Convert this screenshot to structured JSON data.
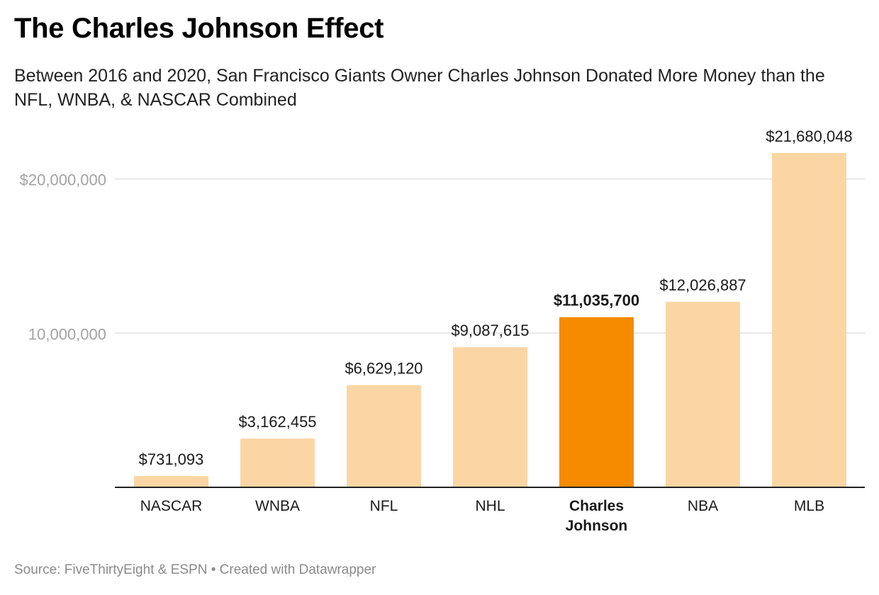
{
  "title": "The Charles Johnson Effect",
  "subtitle": "Between 2016 and 2020, San Francisco Giants Owner Charles Johnson Donated More Money than the NFL, WNBA, & NASCAR Combined",
  "footer": {
    "source_label": "Source:",
    "source": "FiveThirtyEight & ESPN",
    "separator": "•",
    "credit": "Created with Datawrapper"
  },
  "colors": {
    "bar": "#fbd6a4",
    "highlight": "#f68b00",
    "grid": "#e2e2e2",
    "axis": "#222222",
    "tick_label": "#a3a3a3"
  },
  "chart_data": {
    "type": "bar",
    "categories": [
      [
        "NASCAR"
      ],
      [
        "WNBA"
      ],
      [
        "NFL"
      ],
      [
        "NHL"
      ],
      [
        "Charles",
        "Johnson"
      ],
      [
        "NBA"
      ],
      [
        "MLB"
      ]
    ],
    "values": [
      731093,
      3162455,
      6629120,
      9087615,
      11035700,
      12026887,
      21680048
    ],
    "value_labels": [
      "$731,093",
      "$3,162,455",
      "$6,629,120",
      "$9,087,615",
      "$11,035,700",
      "$12,026,887",
      "$21,680,048"
    ],
    "highlight_index": 4,
    "ylim": [
      0,
      21680048
    ],
    "yticks": [
      {
        "value": 10000000,
        "label": "10,000,000"
      },
      {
        "value": 20000000,
        "label": "$20,000,000"
      }
    ],
    "grid": true
  }
}
